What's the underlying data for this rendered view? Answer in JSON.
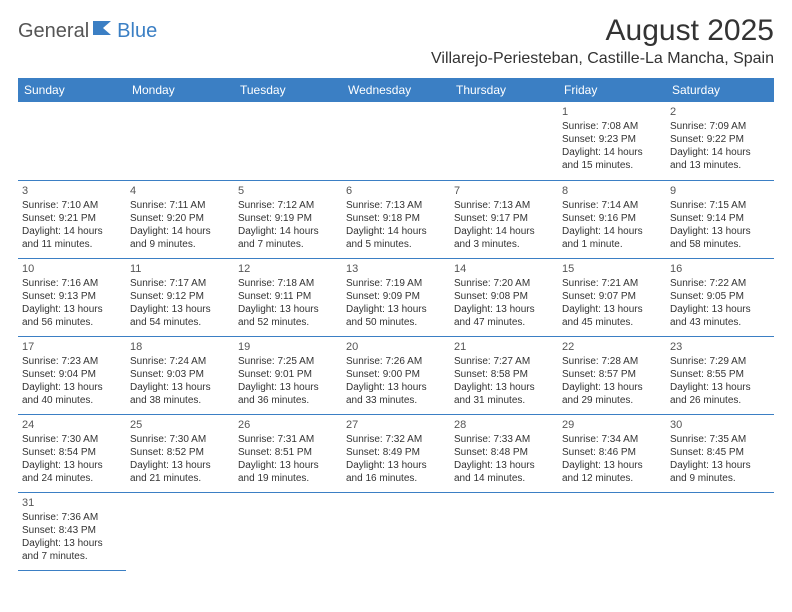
{
  "logo": {
    "part1": "General",
    "part2": "Blue"
  },
  "title": "August 2025",
  "location": "Villarejo-Periesteban, Castille-La Mancha, Spain",
  "day_headers": [
    "Sunday",
    "Monday",
    "Tuesday",
    "Wednesday",
    "Thursday",
    "Friday",
    "Saturday"
  ],
  "colors": {
    "header_bg": "#3b7fc4",
    "header_fg": "#ffffff",
    "border": "#3b7fc4",
    "text": "#333333",
    "logo_gray": "#555555",
    "logo_blue": "#3b7fc4"
  },
  "typography": {
    "title_fontsize": 30,
    "location_fontsize": 16,
    "header_fontsize": 12,
    "daynum_fontsize": 11,
    "detail_fontsize": 10
  },
  "weeks": [
    [
      null,
      null,
      null,
      null,
      null,
      {
        "n": "1",
        "sunrise": "Sunrise: 7:08 AM",
        "sunset": "Sunset: 9:23 PM",
        "daylight": "Daylight: 14 hours and 15 minutes."
      },
      {
        "n": "2",
        "sunrise": "Sunrise: 7:09 AM",
        "sunset": "Sunset: 9:22 PM",
        "daylight": "Daylight: 14 hours and 13 minutes."
      }
    ],
    [
      {
        "n": "3",
        "sunrise": "Sunrise: 7:10 AM",
        "sunset": "Sunset: 9:21 PM",
        "daylight": "Daylight: 14 hours and 11 minutes."
      },
      {
        "n": "4",
        "sunrise": "Sunrise: 7:11 AM",
        "sunset": "Sunset: 9:20 PM",
        "daylight": "Daylight: 14 hours and 9 minutes."
      },
      {
        "n": "5",
        "sunrise": "Sunrise: 7:12 AM",
        "sunset": "Sunset: 9:19 PM",
        "daylight": "Daylight: 14 hours and 7 minutes."
      },
      {
        "n": "6",
        "sunrise": "Sunrise: 7:13 AM",
        "sunset": "Sunset: 9:18 PM",
        "daylight": "Daylight: 14 hours and 5 minutes."
      },
      {
        "n": "7",
        "sunrise": "Sunrise: 7:13 AM",
        "sunset": "Sunset: 9:17 PM",
        "daylight": "Daylight: 14 hours and 3 minutes."
      },
      {
        "n": "8",
        "sunrise": "Sunrise: 7:14 AM",
        "sunset": "Sunset: 9:16 PM",
        "daylight": "Daylight: 14 hours and 1 minute."
      },
      {
        "n": "9",
        "sunrise": "Sunrise: 7:15 AM",
        "sunset": "Sunset: 9:14 PM",
        "daylight": "Daylight: 13 hours and 58 minutes."
      }
    ],
    [
      {
        "n": "10",
        "sunrise": "Sunrise: 7:16 AM",
        "sunset": "Sunset: 9:13 PM",
        "daylight": "Daylight: 13 hours and 56 minutes."
      },
      {
        "n": "11",
        "sunrise": "Sunrise: 7:17 AM",
        "sunset": "Sunset: 9:12 PM",
        "daylight": "Daylight: 13 hours and 54 minutes."
      },
      {
        "n": "12",
        "sunrise": "Sunrise: 7:18 AM",
        "sunset": "Sunset: 9:11 PM",
        "daylight": "Daylight: 13 hours and 52 minutes."
      },
      {
        "n": "13",
        "sunrise": "Sunrise: 7:19 AM",
        "sunset": "Sunset: 9:09 PM",
        "daylight": "Daylight: 13 hours and 50 minutes."
      },
      {
        "n": "14",
        "sunrise": "Sunrise: 7:20 AM",
        "sunset": "Sunset: 9:08 PM",
        "daylight": "Daylight: 13 hours and 47 minutes."
      },
      {
        "n": "15",
        "sunrise": "Sunrise: 7:21 AM",
        "sunset": "Sunset: 9:07 PM",
        "daylight": "Daylight: 13 hours and 45 minutes."
      },
      {
        "n": "16",
        "sunrise": "Sunrise: 7:22 AM",
        "sunset": "Sunset: 9:05 PM",
        "daylight": "Daylight: 13 hours and 43 minutes."
      }
    ],
    [
      {
        "n": "17",
        "sunrise": "Sunrise: 7:23 AM",
        "sunset": "Sunset: 9:04 PM",
        "daylight": "Daylight: 13 hours and 40 minutes."
      },
      {
        "n": "18",
        "sunrise": "Sunrise: 7:24 AM",
        "sunset": "Sunset: 9:03 PM",
        "daylight": "Daylight: 13 hours and 38 minutes."
      },
      {
        "n": "19",
        "sunrise": "Sunrise: 7:25 AM",
        "sunset": "Sunset: 9:01 PM",
        "daylight": "Daylight: 13 hours and 36 minutes."
      },
      {
        "n": "20",
        "sunrise": "Sunrise: 7:26 AM",
        "sunset": "Sunset: 9:00 PM",
        "daylight": "Daylight: 13 hours and 33 minutes."
      },
      {
        "n": "21",
        "sunrise": "Sunrise: 7:27 AM",
        "sunset": "Sunset: 8:58 PM",
        "daylight": "Daylight: 13 hours and 31 minutes."
      },
      {
        "n": "22",
        "sunrise": "Sunrise: 7:28 AM",
        "sunset": "Sunset: 8:57 PM",
        "daylight": "Daylight: 13 hours and 29 minutes."
      },
      {
        "n": "23",
        "sunrise": "Sunrise: 7:29 AM",
        "sunset": "Sunset: 8:55 PM",
        "daylight": "Daylight: 13 hours and 26 minutes."
      }
    ],
    [
      {
        "n": "24",
        "sunrise": "Sunrise: 7:30 AM",
        "sunset": "Sunset: 8:54 PM",
        "daylight": "Daylight: 13 hours and 24 minutes."
      },
      {
        "n": "25",
        "sunrise": "Sunrise: 7:30 AM",
        "sunset": "Sunset: 8:52 PM",
        "daylight": "Daylight: 13 hours and 21 minutes."
      },
      {
        "n": "26",
        "sunrise": "Sunrise: 7:31 AM",
        "sunset": "Sunset: 8:51 PM",
        "daylight": "Daylight: 13 hours and 19 minutes."
      },
      {
        "n": "27",
        "sunrise": "Sunrise: 7:32 AM",
        "sunset": "Sunset: 8:49 PM",
        "daylight": "Daylight: 13 hours and 16 minutes."
      },
      {
        "n": "28",
        "sunrise": "Sunrise: 7:33 AM",
        "sunset": "Sunset: 8:48 PM",
        "daylight": "Daylight: 13 hours and 14 minutes."
      },
      {
        "n": "29",
        "sunrise": "Sunrise: 7:34 AM",
        "sunset": "Sunset: 8:46 PM",
        "daylight": "Daylight: 13 hours and 12 minutes."
      },
      {
        "n": "30",
        "sunrise": "Sunrise: 7:35 AM",
        "sunset": "Sunset: 8:45 PM",
        "daylight": "Daylight: 13 hours and 9 minutes."
      }
    ],
    [
      {
        "n": "31",
        "sunrise": "Sunrise: 7:36 AM",
        "sunset": "Sunset: 8:43 PM",
        "daylight": "Daylight: 13 hours and 7 minutes."
      },
      null,
      null,
      null,
      null,
      null,
      null
    ]
  ]
}
